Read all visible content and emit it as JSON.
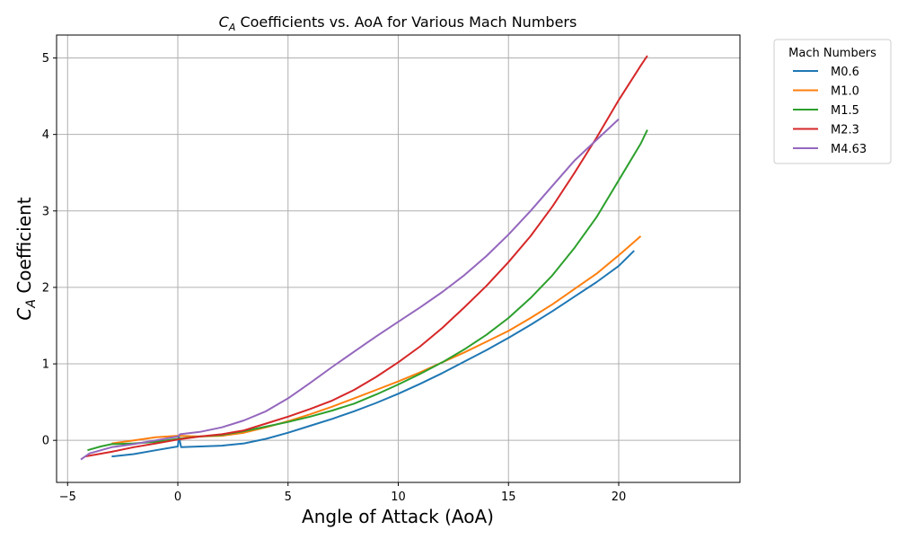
{
  "chart_data": {
    "type": "line",
    "title": "Coefficients vs. AoA for Various Mach Numbers",
    "title_symbol": "C",
    "title_symbol_sub": "A",
    "xlabel": "Angle of Attack (AoA)",
    "ylabel": "Coefficient",
    "ylabel_symbol": "C",
    "ylabel_symbol_sub": "A",
    "xlim": [
      -5.5,
      25.5
    ],
    "ylim": [
      -0.55,
      5.3
    ],
    "xticks": [
      -5,
      0,
      5,
      10,
      15,
      20
    ],
    "yticks": [
      0,
      1,
      2,
      3,
      4,
      5
    ],
    "grid": true,
    "legend": {
      "title": "Mach Numbers",
      "placement": "outside-top-right"
    },
    "series": [
      {
        "name": "M0.6",
        "color": "#1f77b4",
        "x": [
          -3,
          -2,
          -1,
          0,
          0.05,
          0.15,
          1,
          2,
          3,
          4,
          5,
          6,
          7,
          8,
          9,
          10,
          11,
          12,
          13,
          14,
          15,
          16,
          17,
          18,
          19,
          20,
          20.7
        ],
        "y": [
          -0.21,
          -0.18,
          -0.13,
          -0.08,
          0.05,
          -0.09,
          -0.08,
          -0.07,
          -0.04,
          0.02,
          0.1,
          0.19,
          0.28,
          0.38,
          0.49,
          0.61,
          0.74,
          0.88,
          1.03,
          1.18,
          1.34,
          1.51,
          1.69,
          1.88,
          2.07,
          2.28,
          2.48
        ]
      },
      {
        "name": "M1.0",
        "color": "#ff7f0e",
        "x": [
          -3,
          -2,
          -1,
          0,
          1,
          2,
          3,
          4,
          5,
          6,
          7,
          8,
          9,
          10,
          11,
          12,
          13,
          14,
          15,
          16,
          17,
          18,
          19,
          20,
          21
        ],
        "y": [
          -0.04,
          0.0,
          0.04,
          0.06,
          0.05,
          0.06,
          0.1,
          0.17,
          0.25,
          0.34,
          0.44,
          0.55,
          0.66,
          0.77,
          0.89,
          1.02,
          1.15,
          1.29,
          1.43,
          1.6,
          1.78,
          1.98,
          2.18,
          2.42,
          2.67
        ]
      },
      {
        "name": "M1.5",
        "color": "#2ca02c",
        "x": [
          -4.1,
          -3.5,
          -3,
          -2,
          -1,
          0,
          1,
          2,
          3,
          4,
          5,
          6,
          7,
          8,
          9,
          10,
          11,
          12,
          13,
          14,
          15,
          16,
          17,
          18,
          19,
          20,
          21,
          21.3
        ],
        "y": [
          -0.13,
          -0.08,
          -0.05,
          -0.04,
          -0.02,
          0.02,
          0.05,
          0.07,
          0.12,
          0.18,
          0.24,
          0.31,
          0.39,
          0.48,
          0.6,
          0.73,
          0.87,
          1.02,
          1.19,
          1.38,
          1.6,
          1.86,
          2.16,
          2.52,
          2.92,
          3.4,
          3.88,
          4.06
        ]
      },
      {
        "name": "M2.3",
        "color": "#d62728",
        "x": [
          -4.2,
          -3,
          -2,
          -1,
          0,
          1,
          2,
          3,
          4,
          5,
          6,
          7,
          8,
          9,
          10,
          11,
          12,
          13,
          14,
          15,
          16,
          17,
          18,
          19,
          20,
          21,
          21.3
        ],
        "y": [
          -0.21,
          -0.15,
          -0.09,
          -0.04,
          0.01,
          0.05,
          0.08,
          0.13,
          0.22,
          0.31,
          0.41,
          0.52,
          0.66,
          0.83,
          1.02,
          1.23,
          1.47,
          1.74,
          2.02,
          2.33,
          2.67,
          3.06,
          3.5,
          3.96,
          4.45,
          4.9,
          5.03
        ]
      },
      {
        "name": "M4.63",
        "color": "#9467bd",
        "x": [
          -4.4,
          -4,
          -3,
          -2,
          -1,
          0,
          0.1,
          1,
          2,
          3,
          4,
          5,
          6,
          7,
          8,
          9,
          10,
          11,
          12,
          13,
          14,
          15,
          16,
          17,
          18,
          19,
          20
        ],
        "y": [
          -0.25,
          -0.17,
          -0.09,
          -0.05,
          0.0,
          0.05,
          0.08,
          0.11,
          0.17,
          0.26,
          0.38,
          0.55,
          0.75,
          0.96,
          1.16,
          1.36,
          1.55,
          1.74,
          1.94,
          2.16,
          2.41,
          2.69,
          3.0,
          3.33,
          3.66,
          3.93,
          4.2
        ]
      }
    ]
  }
}
